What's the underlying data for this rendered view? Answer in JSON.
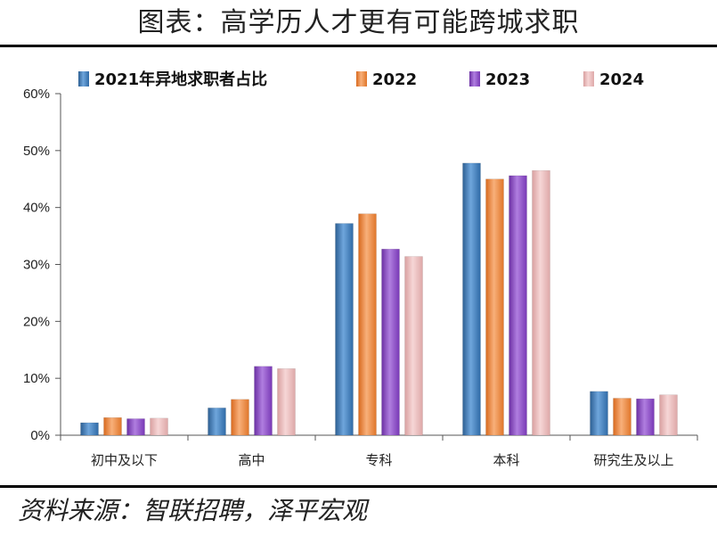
{
  "header": {
    "title": "图表：高学历人才更有可能跨城求职"
  },
  "source": {
    "text": "资料来源：智联招聘，泽平宏观"
  },
  "colors": {
    "2021": "#3f7fbf",
    "2022": "#f08a3c",
    "2023": "#8f4fc8",
    "2024": "#e9b7b7"
  },
  "chart_data": {
    "type": "bar",
    "title": "",
    "xlabel": "",
    "ylabel": "",
    "categories": [
      "初中及以下",
      "高中",
      "专科",
      "本科",
      "研究生及以上"
    ],
    "series": [
      {
        "name": "2021年异地求职者占比",
        "values": [
          0.022,
          0.048,
          0.372,
          0.478,
          0.077
        ]
      },
      {
        "name": "2022",
        "values": [
          0.031,
          0.063,
          0.389,
          0.45,
          0.065
        ]
      },
      {
        "name": "2023",
        "values": [
          0.029,
          0.121,
          0.327,
          0.456,
          0.064
        ]
      },
      {
        "name": "2024",
        "values": [
          0.03,
          0.117,
          0.314,
          0.465,
          0.071
        ]
      }
    ],
    "ylim": [
      0,
      0.6
    ],
    "yticks": [
      "0%",
      "10%",
      "20%",
      "30%",
      "40%",
      "50%",
      "60%"
    ],
    "grid": false,
    "legend_position": "top"
  }
}
